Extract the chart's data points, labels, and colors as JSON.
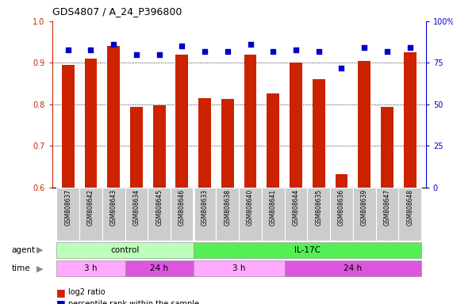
{
  "title": "GDS4807 / A_24_P396800",
  "samples": [
    "GSM808637",
    "GSM808642",
    "GSM808643",
    "GSM808634",
    "GSM808645",
    "GSM808646",
    "GSM808633",
    "GSM808638",
    "GSM808640",
    "GSM808641",
    "GSM808644",
    "GSM808635",
    "GSM808636",
    "GSM808639",
    "GSM808647",
    "GSM808648"
  ],
  "log2_ratio": [
    0.895,
    0.91,
    0.94,
    0.793,
    0.797,
    0.92,
    0.815,
    0.812,
    0.92,
    0.827,
    0.9,
    0.86,
    0.632,
    0.905,
    0.793,
    0.925
  ],
  "percentile": [
    83,
    83,
    86,
    80,
    80,
    85,
    82,
    82,
    86,
    82,
    83,
    82,
    72,
    84,
    82,
    84
  ],
  "ylim_left": [
    0.6,
    1.0
  ],
  "ylim_right": [
    0,
    100
  ],
  "yticks_left": [
    0.6,
    0.7,
    0.8,
    0.9,
    1.0
  ],
  "yticks_right": [
    0,
    25,
    50,
    75,
    100
  ],
  "bar_color": "#cc2200",
  "dot_color": "#0000cc",
  "control_color": "#bbffbb",
  "il17c_color": "#55ee55",
  "time_3h_color": "#ffaaff",
  "time_24h_color": "#dd55dd",
  "bg_color": "#ffffff",
  "label_color": "#cc2200",
  "right_axis_color": "#0000cc",
  "sample_box_color": "#cccccc",
  "figwidth": 5.71,
  "figheight": 3.84,
  "dpi": 100
}
